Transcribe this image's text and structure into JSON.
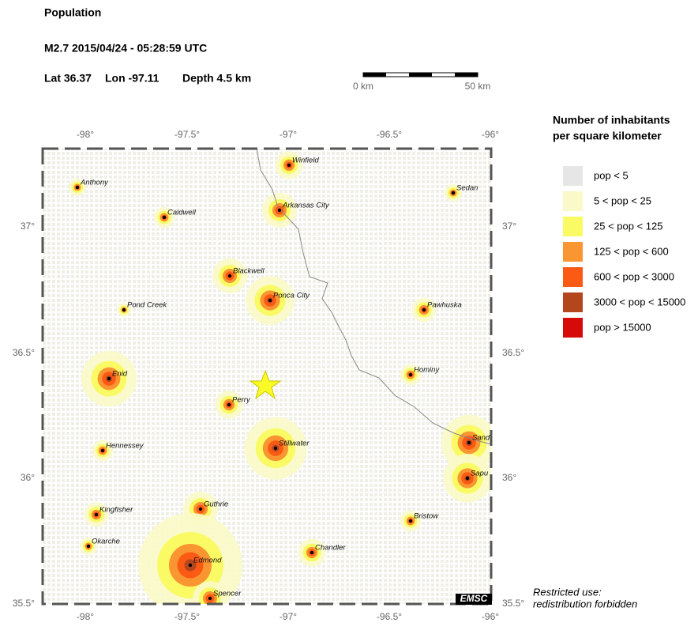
{
  "header": {
    "title": "Population",
    "event": "M2.7  2015/04/24 - 05:28:59 UTC",
    "lat": "Lat 36.37",
    "lon": "Lon -97.11",
    "depth": "Depth  4.5 km"
  },
  "scale_bar": {
    "start": "0 km",
    "end": "50 km"
  },
  "map": {
    "lon_labels": [
      "-98°",
      "-97.5°",
      "-97°",
      "-96.5°",
      "-96°"
    ],
    "lat_labels": [
      "37°",
      "36.5°",
      "36°",
      "35.5°"
    ],
    "cities": [
      "Winfield",
      "Anthony",
      "Sedan",
      "Caldwell",
      "Arkansas City",
      "Blackwell",
      "Ponca City",
      "Pond Creek",
      "Pawhuska",
      "Hominy",
      "Enid",
      "Perry",
      "Stillwater",
      "Hennessey",
      "Sand",
      "Sapu",
      "Kingfisher",
      "Guthrie",
      "Bristow",
      "Okarche",
      "Chandler",
      "Edmond",
      "Spencer"
    ],
    "logo": "EMSC"
  },
  "legend": {
    "title": [
      "Number of inhabitants",
      "per square kilometer"
    ],
    "items": [
      {
        "label": "pop < 5",
        "color": "#e6e6e6"
      },
      {
        "label": "5 < pop < 25",
        "color": "#fafac8"
      },
      {
        "label": "25 < pop < 125",
        "color": "#fafa64"
      },
      {
        "label": "125 < pop < 600",
        "color": "#fa9632"
      },
      {
        "label": "600 < pop < 3000",
        "color": "#fa5a14"
      },
      {
        "label": "3000 < pop < 15000",
        "color": "#b4461e"
      },
      {
        "label": "pop > 15000",
        "color": "#d70a0a"
      }
    ]
  },
  "notice": [
    "Restricted use:",
    "redistribution forbidden"
  ]
}
